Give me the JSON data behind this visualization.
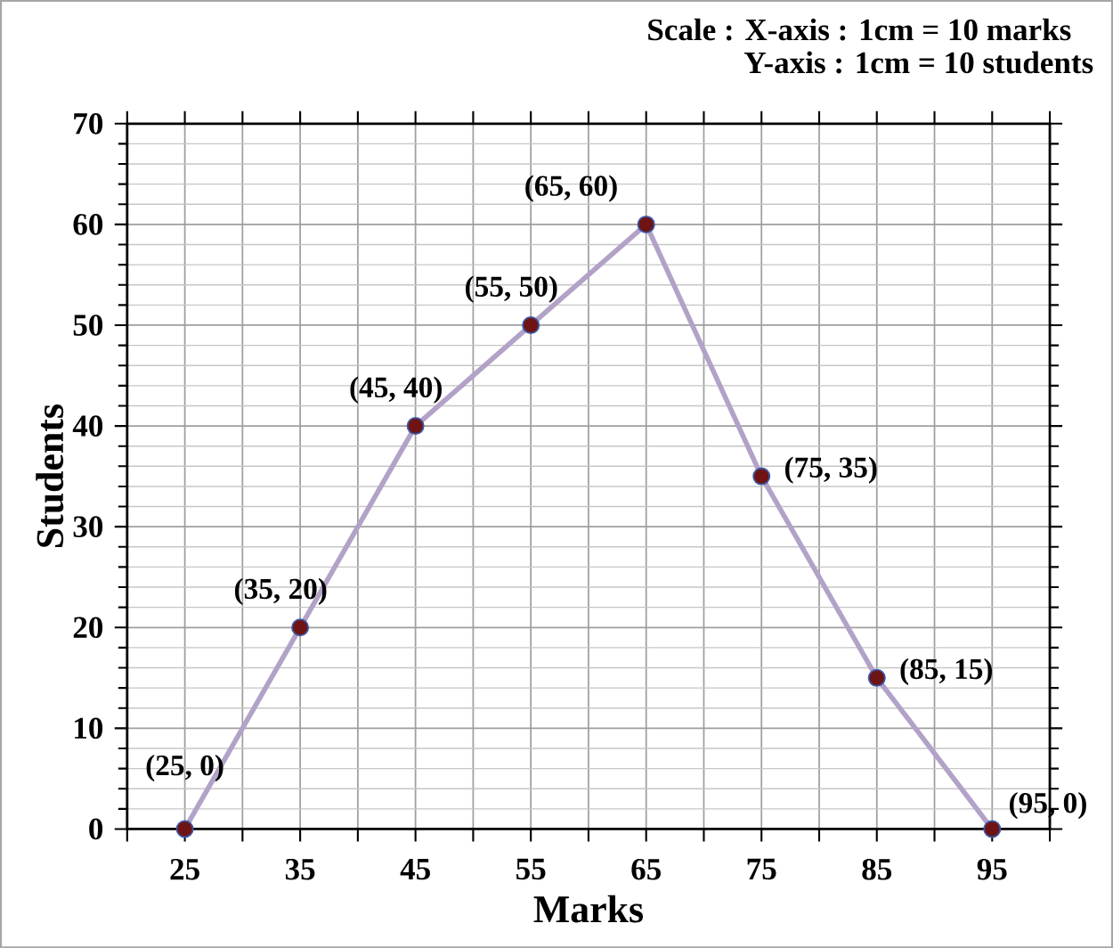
{
  "chart_data": {
    "type": "line",
    "xlabel": "Marks",
    "ylabel": "Students",
    "x": [
      25,
      35,
      45,
      55,
      65,
      75,
      85,
      95
    ],
    "series": [
      {
        "color": "#b3a2c7",
        "values": [
          0,
          20,
          40,
          50,
          60,
          35,
          15,
          0
        ]
      }
    ],
    "xlim": [
      20,
      100
    ],
    "xticks": [
      {
        "value": 20,
        "label": null
      },
      25,
      {
        "value": 30,
        "label": null
      },
      35,
      {
        "value": 40,
        "label": null
      },
      45,
      {
        "value": 50,
        "label": null
      },
      55,
      {
        "value": 60,
        "label": null
      },
      65,
      {
        "value": 70,
        "label": null
      },
      75,
      {
        "value": 80,
        "label": null
      },
      85,
      {
        "value": 90,
        "label": null
      },
      95,
      {
        "value": 100,
        "label": null
      }
    ],
    "ylim": [
      0,
      70
    ],
    "yticks": [
      0,
      10,
      20,
      30,
      40,
      50,
      60,
      70
    ],
    "grid": true,
    "marker": "circle",
    "line_style": "solid",
    "annotations": [
      "Scale : X-axis : 1cm = 10 marks",
      "Y-axis : 1cm = 10 students",
      {
        "text": "(25, 0)",
        "x": 25,
        "y": 0
      },
      {
        "text": "(35, 20)",
        "x": 35,
        "y": 20
      },
      {
        "text": "(45, 40)",
        "x": 45,
        "y": 40
      },
      {
        "text": "(55, 50)",
        "x": 55,
        "y": 50
      },
      {
        "text": "(65, 60)",
        "x": 65,
        "y": 60
      },
      {
        "text": "(75, 35)",
        "x": 75,
        "y": 35
      },
      {
        "text": "(85, 15)",
        "x": 85,
        "y": 15
      },
      {
        "text": "(95, 0)",
        "x": 95,
        "y": 0
      }
    ]
  }
}
